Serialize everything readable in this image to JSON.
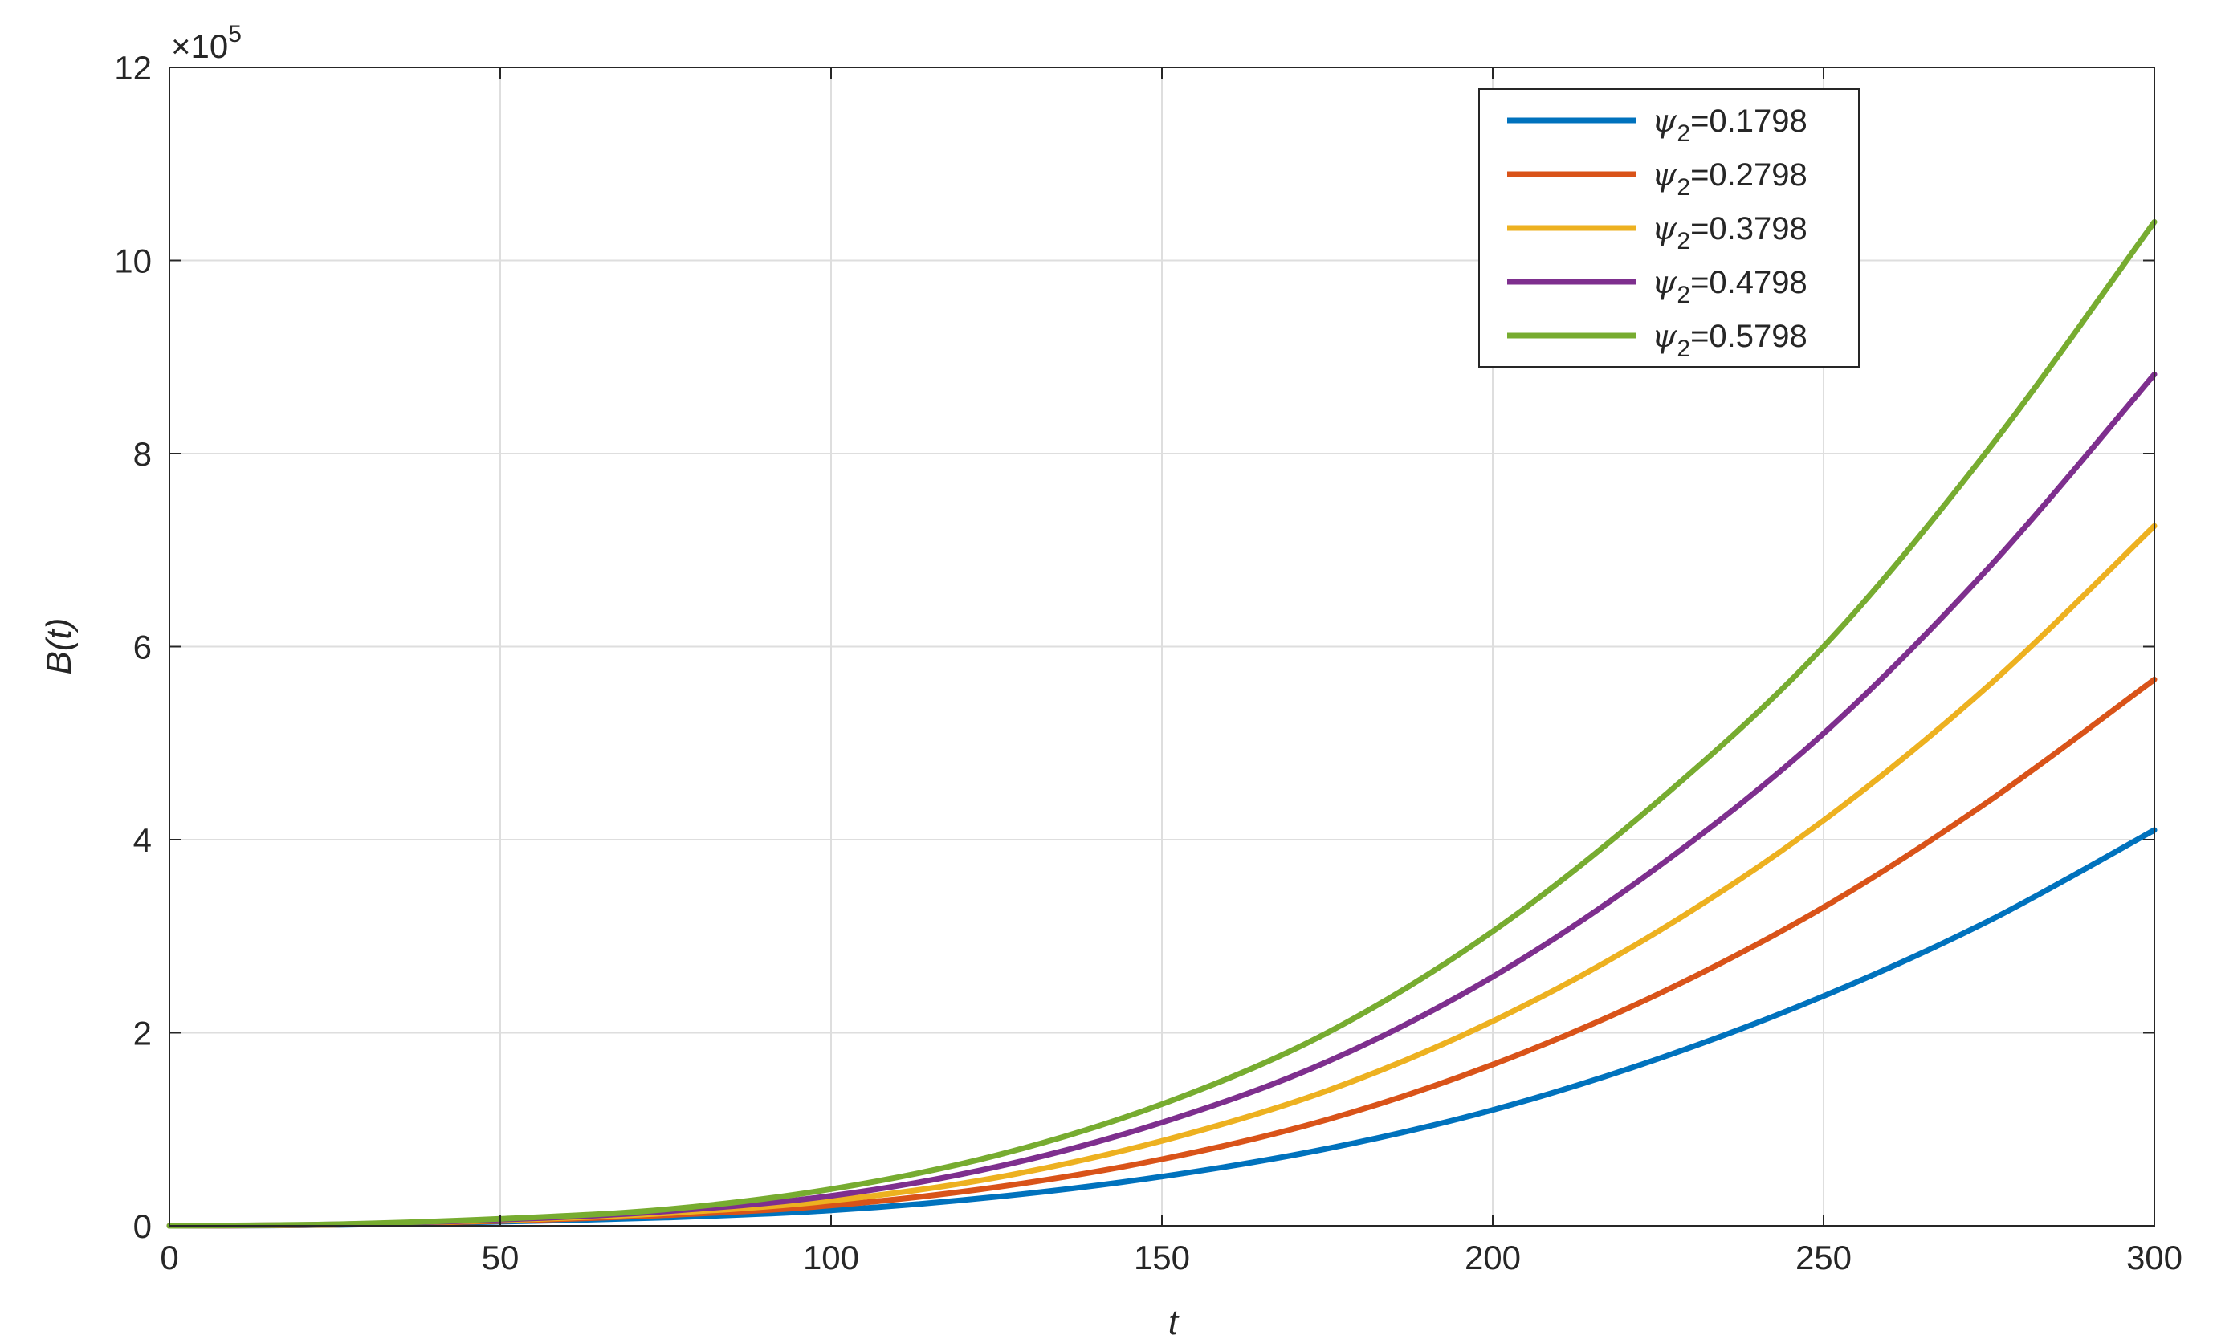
{
  "chart_data": {
    "type": "line",
    "title": "",
    "xlabel": "t",
    "ylabel": "B(t)",
    "xlim": [
      0,
      300
    ],
    "ylim": [
      0,
      1200000
    ],
    "y_exponent_label": "×10",
    "y_exponent_power": "5",
    "x_ticks": [
      0,
      50,
      100,
      150,
      200,
      250,
      300
    ],
    "x_tick_labels": [
      "0",
      "50",
      "100",
      "150",
      "200",
      "250",
      "300"
    ],
    "y_ticks": [
      0,
      200000,
      400000,
      600000,
      800000,
      1000000,
      1200000
    ],
    "y_tick_labels": [
      "0",
      "2",
      "4",
      "6",
      "8",
      "10",
      "12"
    ],
    "grid": true,
    "legend_position": "top-right",
    "x": [
      0,
      25,
      50,
      75,
      100,
      125,
      150,
      175,
      200,
      225,
      250,
      275,
      300
    ],
    "series": [
      {
        "name": "ψ2=0.1798",
        "symbol": "ψ",
        "subscript": "2",
        "value_text": "=0.1798",
        "color": "#0072BD",
        "values": [
          0,
          800,
          4200,
          8500,
          16000,
          30000,
          51000,
          80000,
          120000,
          173000,
          238000,
          316000,
          410000
        ]
      },
      {
        "name": "ψ2=0.2798",
        "symbol": "ψ",
        "subscript": "2",
        "value_text": "=0.2798",
        "color": "#D95319",
        "values": [
          0,
          1000,
          5000,
          11000,
          21000,
          40000,
          69000,
          110000,
          167000,
          240000,
          330000,
          440000,
          566000
        ]
      },
      {
        "name": "ψ2=0.3798",
        "symbol": "ψ",
        "subscript": "2",
        "value_text": "=0.3798",
        "color": "#EDB120",
        "values": [
          0,
          1200,
          5700,
          13000,
          26000,
          50000,
          88000,
          140000,
          212000,
          305000,
          420000,
          560000,
          725000
        ]
      },
      {
        "name": "ψ2=0.4798",
        "symbol": "ψ",
        "subscript": "2",
        "value_text": "=0.4798",
        "color": "#7E2F8E",
        "values": [
          0,
          1400,
          6400,
          15000,
          31000,
          61000,
          107000,
          170000,
          258000,
          372000,
          510000,
          682000,
          882000
        ]
      },
      {
        "name": "ψ2=0.5798",
        "symbol": "ψ",
        "subscript": "2",
        "value_text": "=0.5798",
        "color": "#77AC30",
        "values": [
          0,
          1600,
          7200,
          17000,
          38000,
          73000,
          126000,
          200000,
          305000,
          440000,
          600000,
          805000,
          1040000
        ]
      }
    ]
  }
}
